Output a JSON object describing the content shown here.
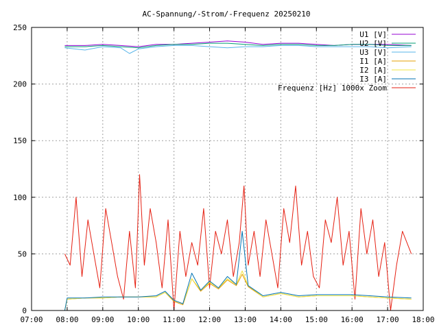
{
  "chart_data": {
    "type": "line",
    "title": "AC-Spannung/-Strom/-Frequenz 20250210",
    "xlabel": "",
    "ylabel": "",
    "x_range": [
      "07:00",
      "18:00"
    ],
    "x_ticks": [
      "07:00",
      "08:00",
      "09:00",
      "10:00",
      "11:00",
      "12:00",
      "13:00",
      "14:00",
      "15:00",
      "16:00",
      "17:00",
      "18:00"
    ],
    "ylim": [
      0,
      250
    ],
    "y_ticks": [
      "0",
      "50",
      "100",
      "150",
      "200",
      "250"
    ],
    "grid": true,
    "legend_position": "top-right",
    "series": [
      {
        "name": "U1 [V]",
        "color": "#9400d3",
        "x": [
          "07:56",
          "08:30",
          "09:00",
          "09:30",
          "10:00",
          "10:30",
          "11:00",
          "11:30",
          "12:00",
          "12:30",
          "13:00",
          "13:30",
          "14:00",
          "14:30",
          "15:00",
          "15:30",
          "16:00",
          "16:30",
          "17:00",
          "17:40"
        ],
        "values": [
          234,
          234,
          235,
          234,
          233,
          235,
          235,
          236,
          237,
          238,
          237,
          235,
          236,
          236,
          235,
          234,
          235,
          235,
          235,
          234
        ]
      },
      {
        "name": "U2 [V]",
        "color": "#009e73",
        "x": [
          "07:56",
          "08:30",
          "09:00",
          "09:30",
          "10:00",
          "10:30",
          "11:00",
          "11:30",
          "12:00",
          "12:30",
          "13:00",
          "13:30",
          "14:00",
          "14:30",
          "15:00",
          "15:30",
          "16:00",
          "16:30",
          "17:00",
          "17:40"
        ],
        "values": [
          233,
          233,
          234,
          233,
          232,
          234,
          235,
          235,
          236,
          236,
          235,
          234,
          235,
          235,
          234,
          234,
          235,
          235,
          234,
          234
        ]
      },
      {
        "name": "U3 [V]",
        "color": "#56b4e9",
        "x": [
          "07:56",
          "08:30",
          "09:00",
          "09:30",
          "09:45",
          "10:00",
          "10:30",
          "11:00",
          "11:30",
          "12:00",
          "12:30",
          "13:00",
          "13:30",
          "14:00",
          "14:30",
          "15:00",
          "15:30",
          "16:00",
          "16:30",
          "17:00",
          "17:40"
        ],
        "values": [
          232,
          230,
          233,
          232,
          227,
          231,
          233,
          234,
          234,
          233,
          232,
          233,
          233,
          234,
          234,
          233,
          233,
          233,
          233,
          232,
          233
        ]
      },
      {
        "name": "I1 [A]",
        "color": "#e69f00",
        "x": [
          "07:56",
          "08:00",
          "08:30",
          "09:00",
          "09:30",
          "10:00",
          "10:30",
          "10:45",
          "11:00",
          "11:15",
          "11:30",
          "11:45",
          "12:00",
          "12:15",
          "12:30",
          "12:45",
          "12:55",
          "13:05",
          "13:30",
          "14:00",
          "14:30",
          "15:00",
          "15:30",
          "16:00",
          "16:30",
          "17:00",
          "17:40"
        ],
        "values": [
          0,
          10,
          11,
          11,
          12,
          12,
          12,
          16,
          8,
          5,
          28,
          17,
          24,
          19,
          27,
          22,
          32,
          21,
          12,
          15,
          12,
          13,
          13,
          13,
          12,
          11,
          10
        ]
      },
      {
        "name": "I2 [A]",
        "color": "#f0e442",
        "x": [
          "07:56",
          "08:00",
          "08:30",
          "09:00",
          "09:30",
          "10:00",
          "10:30",
          "10:45",
          "11:00",
          "11:15",
          "11:30",
          "11:45",
          "12:00",
          "12:15",
          "12:30",
          "12:45",
          "12:55",
          "13:05",
          "13:30",
          "14:00",
          "14:30",
          "15:00",
          "15:30",
          "16:00",
          "16:30",
          "17:00",
          "17:40"
        ],
        "values": [
          0,
          10,
          11,
          11,
          12,
          12,
          12,
          16,
          9,
          6,
          28,
          18,
          25,
          20,
          28,
          23,
          35,
          22,
          12,
          15,
          12,
          13,
          13,
          13,
          12,
          11,
          10
        ]
      },
      {
        "name": "I3 [A]",
        "color": "#0072b2",
        "x": [
          "07:56",
          "08:00",
          "08:30",
          "09:00",
          "09:30",
          "10:00",
          "10:30",
          "10:45",
          "11:00",
          "11:15",
          "11:30",
          "11:45",
          "12:00",
          "12:15",
          "12:30",
          "12:45",
          "12:55",
          "13:05",
          "13:30",
          "14:00",
          "14:30",
          "15:00",
          "15:30",
          "16:00",
          "16:30",
          "17:00",
          "17:40"
        ],
        "values": [
          0,
          11,
          11,
          12,
          12,
          12,
          13,
          17,
          9,
          6,
          33,
          18,
          26,
          20,
          30,
          23,
          70,
          22,
          13,
          16,
          13,
          14,
          14,
          14,
          13,
          12,
          11
        ]
      },
      {
        "name": "Frequenz [Hz] 1000x Zoom",
        "color": "#e51e10",
        "x": [
          "07:56",
          "08:05",
          "08:15",
          "08:25",
          "08:35",
          "08:45",
          "08:55",
          "09:05",
          "09:15",
          "09:25",
          "09:35",
          "09:45",
          "09:55",
          "10:02",
          "10:10",
          "10:20",
          "10:30",
          "10:40",
          "10:50",
          "11:00",
          "11:10",
          "11:20",
          "11:30",
          "11:40",
          "11:50",
          "12:00",
          "12:10",
          "12:20",
          "12:30",
          "12:40",
          "12:50",
          "12:58",
          "13:05",
          "13:15",
          "13:25",
          "13:35",
          "13:45",
          "13:55",
          "14:05",
          "14:15",
          "14:25",
          "14:35",
          "14:45",
          "14:55",
          "15:05",
          "15:15",
          "15:25",
          "15:35",
          "15:45",
          "15:55",
          "16:05",
          "16:15",
          "16:25",
          "16:35",
          "16:45",
          "16:55",
          "17:05",
          "17:15",
          "17:25",
          "17:40"
        ],
        "values": [
          50,
          40,
          100,
          30,
          80,
          50,
          20,
          90,
          60,
          30,
          10,
          70,
          20,
          120,
          40,
          90,
          60,
          20,
          80,
          0,
          70,
          30,
          60,
          40,
          90,
          20,
          70,
          50,
          80,
          30,
          60,
          110,
          40,
          70,
          30,
          80,
          50,
          20,
          90,
          60,
          110,
          40,
          70,
          30,
          20,
          80,
          60,
          100,
          40,
          70,
          10,
          90,
          50,
          80,
          30,
          60,
          0,
          40,
          70,
          50
        ]
      }
    ]
  }
}
